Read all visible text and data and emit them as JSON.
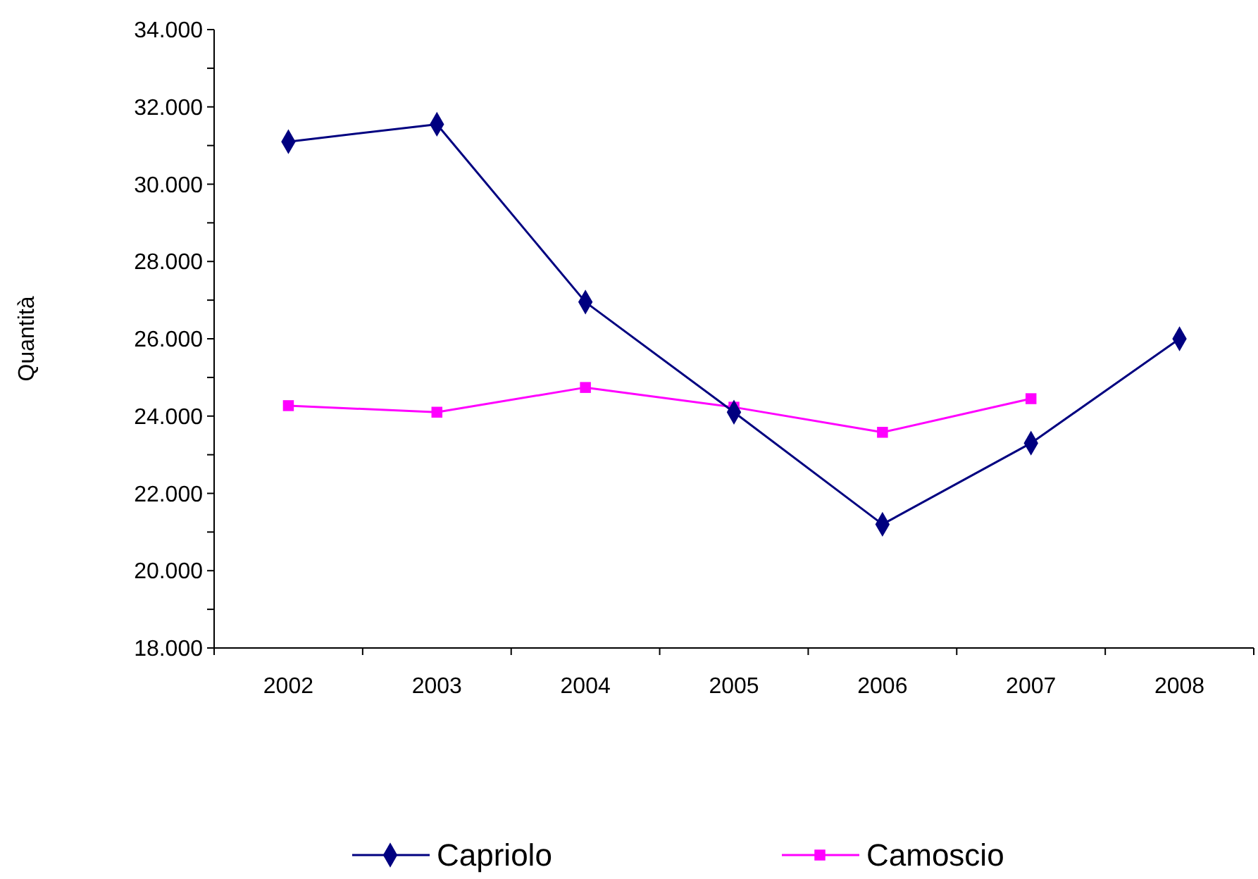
{
  "chart_data": {
    "type": "line",
    "ylabel": "Quantità",
    "categories": [
      "2002",
      "2003",
      "2004",
      "2005",
      "2006",
      "2007",
      "2008"
    ],
    "series": [
      {
        "name": "Capriolo",
        "color": "#000080",
        "marker": "diamond",
        "values": [
          31100,
          31550,
          26950,
          24100,
          21200,
          23300,
          26000
        ]
      },
      {
        "name": "Camoscio",
        "color": "#ff00ff",
        "marker": "square",
        "values": [
          24270,
          24100,
          24740,
          24230,
          23580,
          24450,
          null
        ]
      }
    ],
    "ylim": [
      18000,
      34000
    ],
    "yticks": [
      {
        "value": 18000,
        "label": "18.000"
      },
      {
        "value": 19000,
        "label": null
      },
      {
        "value": 20000,
        "label": "20.000"
      },
      {
        "value": 21000,
        "label": null
      },
      {
        "value": 22000,
        "label": "22.000"
      },
      {
        "value": 23000,
        "label": null
      },
      {
        "value": 24000,
        "label": "24.000"
      },
      {
        "value": 25000,
        "label": null
      },
      {
        "value": 26000,
        "label": "26.000"
      },
      {
        "value": 27000,
        "label": null
      },
      {
        "value": 28000,
        "label": "28.000"
      },
      {
        "value": 29000,
        "label": null
      },
      {
        "value": 30000,
        "label": "30.000"
      },
      {
        "value": 31000,
        "label": null
      },
      {
        "value": 32000,
        "label": "32.000"
      },
      {
        "value": 33000,
        "label": null
      },
      {
        "value": 34000,
        "label": "34.000"
      }
    ],
    "grid": false,
    "legend": "bottom",
    "line_style": "solid"
  }
}
